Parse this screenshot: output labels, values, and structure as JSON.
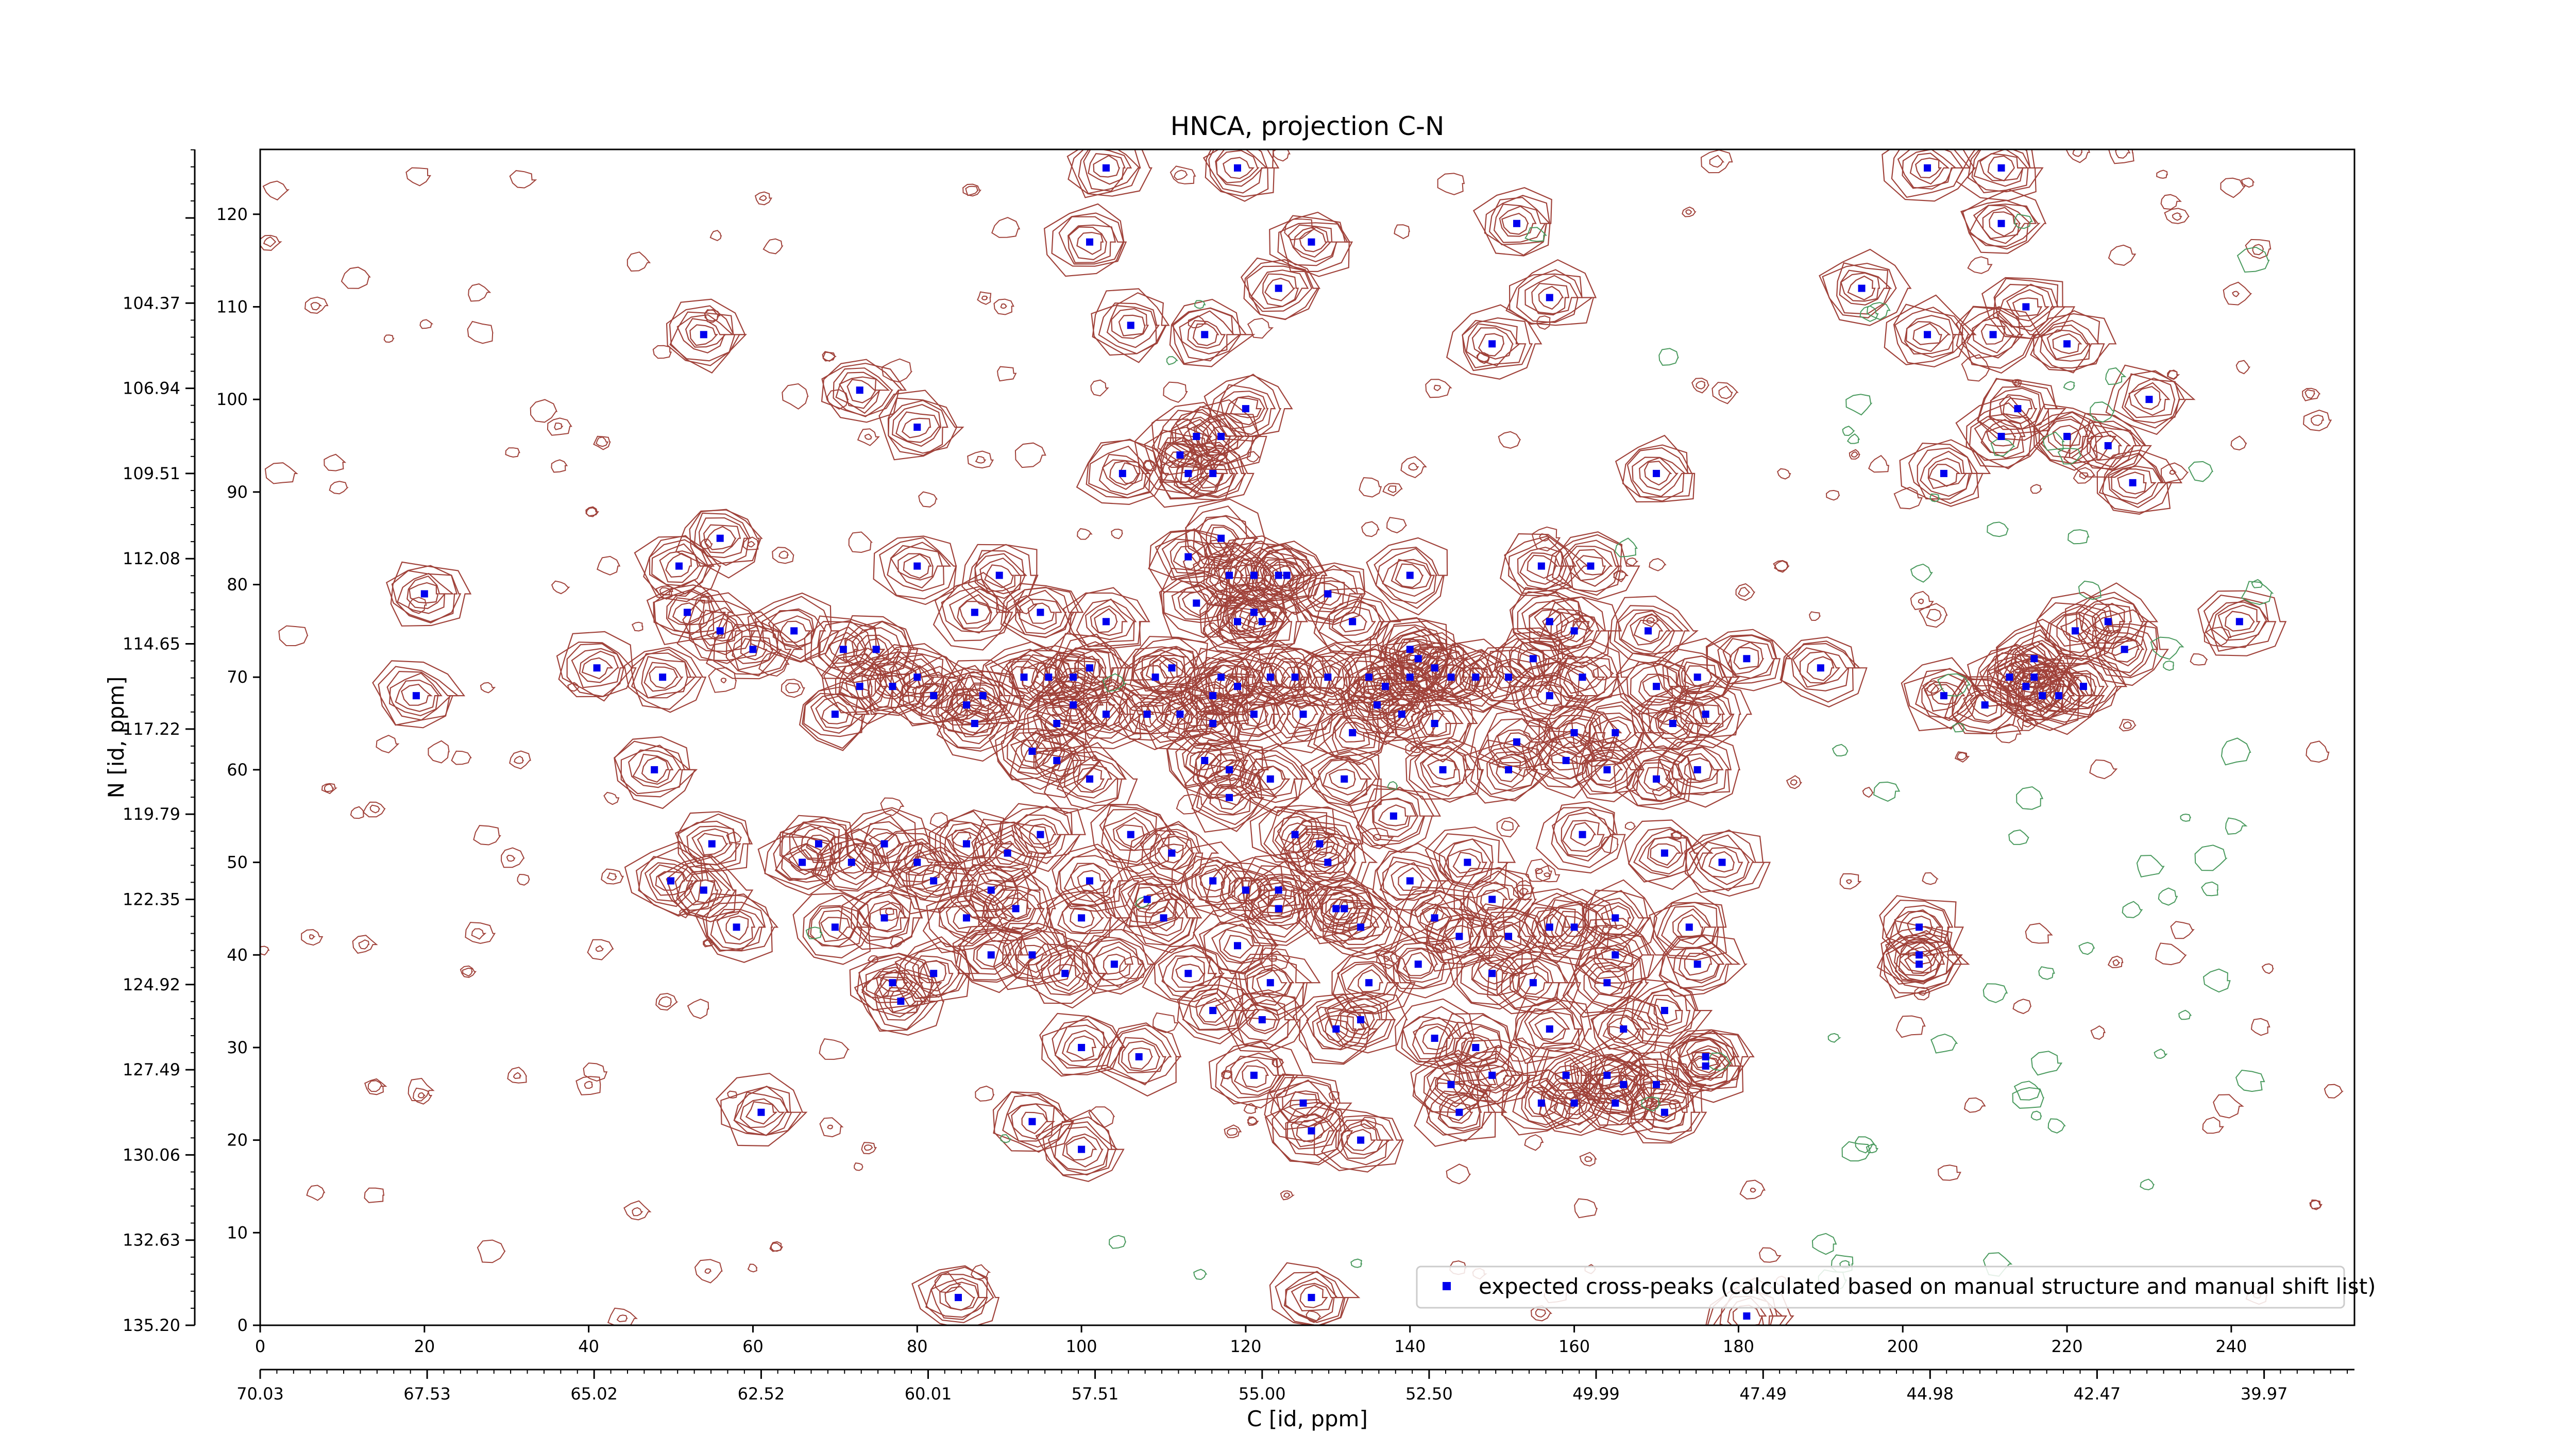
{
  "chart_data": {
    "type": "scatter",
    "title": "HNCA, projection C-N",
    "xlabel": "C [id, ppm]",
    "ylabel": "N [id, ppm]",
    "xlim": [
      0,
      255
    ],
    "ylim": [
      0,
      127
    ],
    "x_ticks": [
      0,
      20,
      40,
      60,
      80,
      100,
      120,
      140,
      160,
      180,
      200,
      220,
      240
    ],
    "y_ticks": [
      0,
      10,
      20,
      30,
      40,
      50,
      60,
      70,
      80,
      90,
      100,
      110,
      120
    ],
    "x_ticks_ppm": {
      "positions": [
        0,
        20.33,
        40.66,
        61,
        81.33,
        101.66,
        122,
        142.33,
        162.66,
        183,
        203.33,
        223.66,
        244
      ],
      "labels": [
        "70.03",
        "67.53",
        "65.02",
        "62.52",
        "60.01",
        "57.51",
        "55.00",
        "52.50",
        "49.99",
        "47.49",
        "44.98",
        "42.47",
        "39.97"
      ]
    },
    "y_ticks_ppm": {
      "positions": [
        0,
        9.2,
        18.4,
        27.6,
        36.8,
        46,
        55.2,
        64.4,
        73.6,
        82.8,
        92,
        101.2,
        110.4,
        119.6
      ],
      "labels": [
        "135.20",
        "132.63",
        "130.06",
        "127.49",
        "124.92",
        "122.35",
        "119.79",
        "117.22",
        "114.65",
        "112.08",
        "109.51",
        "106.94",
        "104.37",
        ""
      ]
    },
    "grid": false,
    "legend": {
      "position": "lower-right",
      "entries": [
        "expected cross-peaks (calculated based on manual structure and manual shift list)"
      ]
    },
    "colors": {
      "peak": "#0000ee",
      "contour_positive": "#a0423a",
      "contour_negative": "#4a9a5e"
    },
    "series": [
      {
        "name": "expected cross-peaks (calculated based on manual structure and manual shift list)",
        "points": [
          [
            103,
            125
          ],
          [
            119,
            125
          ],
          [
            203,
            125
          ],
          [
            212,
            125
          ],
          [
            101,
            117
          ],
          [
            128,
            117
          ],
          [
            153,
            119
          ],
          [
            212,
            119
          ],
          [
            124,
            112
          ],
          [
            157,
            111
          ],
          [
            195,
            112
          ],
          [
            106,
            108
          ],
          [
            115,
            107
          ],
          [
            203,
            107
          ],
          [
            211,
            107
          ],
          [
            215,
            110
          ],
          [
            54,
            107
          ],
          [
            150,
            106
          ],
          [
            220,
            106
          ],
          [
            73,
            101
          ],
          [
            120,
            99
          ],
          [
            214,
            99
          ],
          [
            230,
            100
          ],
          [
            80,
            97
          ],
          [
            114,
            96
          ],
          [
            117,
            96
          ],
          [
            112,
            94
          ],
          [
            116,
            92
          ],
          [
            220,
            96
          ],
          [
            225,
            95
          ],
          [
            105,
            92
          ],
          [
            113,
            92
          ],
          [
            205,
            92
          ],
          [
            212,
            96
          ],
          [
            170,
            92
          ],
          [
            228,
            91
          ],
          [
            56,
            85
          ],
          [
            51,
            82
          ],
          [
            113,
            83
          ],
          [
            117,
            85
          ],
          [
            80,
            82
          ],
          [
            90,
            81
          ],
          [
            118,
            81
          ],
          [
            121,
            81
          ],
          [
            124,
            81
          ],
          [
            125,
            81
          ],
          [
            130,
            79
          ],
          [
            140,
            81
          ],
          [
            156,
            82
          ],
          [
            162,
            82
          ],
          [
            52,
            77
          ],
          [
            56,
            75
          ],
          [
            20,
            79
          ],
          [
            87,
            77
          ],
          [
            95,
            77
          ],
          [
            114,
            78
          ],
          [
            121,
            77
          ],
          [
            60,
            73
          ],
          [
            75,
            73
          ],
          [
            65,
            75
          ],
          [
            71,
            73
          ],
          [
            103,
            76
          ],
          [
            119,
            76
          ],
          [
            122,
            76
          ],
          [
            133,
            76
          ],
          [
            140,
            73
          ],
          [
            157,
            76
          ],
          [
            160,
            75
          ],
          [
            169,
            75
          ],
          [
            41,
            71
          ],
          [
            49,
            70
          ],
          [
            19,
            68
          ],
          [
            73,
            69
          ],
          [
            77,
            69
          ],
          [
            80,
            70
          ],
          [
            88,
            68
          ],
          [
            93,
            70
          ],
          [
            96,
            70
          ],
          [
            99,
            70
          ],
          [
            101,
            71
          ],
          [
            109,
            70
          ],
          [
            111,
            71
          ],
          [
            117,
            70
          ],
          [
            116,
            68
          ],
          [
            119,
            69
          ],
          [
            123,
            70
          ],
          [
            126,
            70
          ],
          [
            130,
            70
          ],
          [
            135,
            70
          ],
          [
            137,
            69
          ],
          [
            140,
            70
          ],
          [
            141,
            72
          ],
          [
            143,
            71
          ],
          [
            145,
            70
          ],
          [
            148,
            70
          ],
          [
            152,
            70
          ],
          [
            155,
            72
          ],
          [
            157,
            68
          ],
          [
            161,
            70
          ],
          [
            170,
            69
          ],
          [
            175,
            70
          ],
          [
            70,
            66
          ],
          [
            82,
            68
          ],
          [
            86,
            67
          ],
          [
            87,
            65
          ],
          [
            97,
            65
          ],
          [
            99,
            67
          ],
          [
            103,
            66
          ],
          [
            108,
            66
          ],
          [
            112,
            66
          ],
          [
            116,
            65
          ],
          [
            121,
            66
          ],
          [
            127,
            66
          ],
          [
            133,
            64
          ],
          [
            136,
            67
          ],
          [
            139,
            66
          ],
          [
            143,
            65
          ],
          [
            153,
            63
          ],
          [
            160,
            64
          ],
          [
            165,
            64
          ],
          [
            172,
            65
          ],
          [
            176,
            66
          ],
          [
            181,
            72
          ],
          [
            190,
            71
          ],
          [
            205,
            68
          ],
          [
            210,
            67
          ],
          [
            213,
            70
          ],
          [
            215,
            69
          ],
          [
            217,
            68
          ],
          [
            219,
            68
          ],
          [
            222,
            69
          ],
          [
            227,
            73
          ],
          [
            216,
            70
          ],
          [
            216,
            72
          ],
          [
            221,
            75
          ],
          [
            225,
            76
          ],
          [
            241,
            76
          ],
          [
            48,
            60
          ],
          [
            94,
            62
          ],
          [
            97,
            61
          ],
          [
            101,
            59
          ],
          [
            115,
            61
          ],
          [
            118,
            60
          ],
          [
            123,
            59
          ],
          [
            132,
            59
          ],
          [
            144,
            60
          ],
          [
            152,
            60
          ],
          [
            159,
            61
          ],
          [
            164,
            60
          ],
          [
            170,
            59
          ],
          [
            175,
            60
          ],
          [
            118,
            57
          ],
          [
            55,
            52
          ],
          [
            66,
            50
          ],
          [
            72,
            50
          ],
          [
            68,
            52
          ],
          [
            80,
            50
          ],
          [
            86,
            52
          ],
          [
            91,
            51
          ],
          [
            95,
            53
          ],
          [
            106,
            53
          ],
          [
            111,
            51
          ],
          [
            126,
            53
          ],
          [
            130,
            50
          ],
          [
            129,
            52
          ],
          [
            138,
            55
          ],
          [
            147,
            50
          ],
          [
            161,
            53
          ],
          [
            171,
            51
          ],
          [
            178,
            50
          ],
          [
            50,
            48
          ],
          [
            54,
            47
          ],
          [
            76,
            52
          ],
          [
            82,
            48
          ],
          [
            89,
            47
          ],
          [
            101,
            48
          ],
          [
            108,
            46
          ],
          [
            116,
            48
          ],
          [
            120,
            47
          ],
          [
            124,
            47
          ],
          [
            132,
            45
          ],
          [
            140,
            48
          ],
          [
            150,
            46
          ],
          [
            157,
            43
          ],
          [
            165,
            44
          ],
          [
            174,
            43
          ],
          [
            58,
            43
          ],
          [
            70,
            43
          ],
          [
            76,
            44
          ],
          [
            86,
            44
          ],
          [
            92,
            45
          ],
          [
            100,
            44
          ],
          [
            110,
            44
          ],
          [
            119,
            41
          ],
          [
            124,
            45
          ],
          [
            131,
            45
          ],
          [
            134,
            43
          ],
          [
            143,
            44
          ],
          [
            146,
            42
          ],
          [
            152,
            42
          ],
          [
            160,
            43
          ],
          [
            165,
            40
          ],
          [
            202,
            43
          ],
          [
            202,
            40
          ],
          [
            77,
            37
          ],
          [
            82,
            38
          ],
          [
            89,
            40
          ],
          [
            94,
            40
          ],
          [
            98,
            38
          ],
          [
            104,
            39
          ],
          [
            113,
            38
          ],
          [
            123,
            37
          ],
          [
            135,
            37
          ],
          [
            141,
            39
          ],
          [
            150,
            38
          ],
          [
            155,
            37
          ],
          [
            164,
            37
          ],
          [
            175,
            39
          ],
          [
            78,
            35
          ],
          [
            116,
            34
          ],
          [
            122,
            33
          ],
          [
            131,
            32
          ],
          [
            134,
            33
          ],
          [
            143,
            31
          ],
          [
            148,
            30
          ],
          [
            157,
            32
          ],
          [
            166,
            32
          ],
          [
            171,
            34
          ],
          [
            176,
            29
          ],
          [
            100,
            30
          ],
          [
            107,
            29
          ],
          [
            121,
            27
          ],
          [
            127,
            24
          ],
          [
            145,
            26
          ],
          [
            150,
            27
          ],
          [
            159,
            27
          ],
          [
            164,
            27
          ],
          [
            166,
            26
          ],
          [
            170,
            26
          ],
          [
            94,
            22
          ],
          [
            100,
            19
          ],
          [
            128,
            21
          ],
          [
            134,
            20
          ],
          [
            146,
            23
          ],
          [
            156,
            24
          ],
          [
            160,
            24
          ],
          [
            165,
            24
          ],
          [
            171,
            23
          ],
          [
            61,
            23
          ],
          [
            85,
            3
          ],
          [
            128,
            3
          ],
          [
            181,
            1
          ],
          [
            202,
            39
          ],
          [
            176,
            28
          ]
        ]
      }
    ]
  }
}
